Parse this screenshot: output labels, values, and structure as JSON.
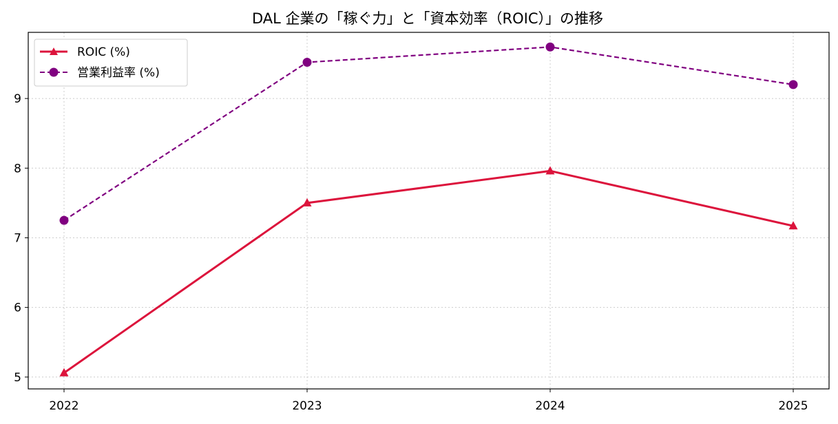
{
  "chart_data": {
    "type": "line",
    "title": "DAL 企業の「稼ぐ力」と「資本効率（ROIC）」の推移",
    "xlabel": "",
    "ylabel": "",
    "categories": [
      "2022",
      "2023",
      "2024",
      "2025"
    ],
    "y_ticks": [
      "5",
      "6",
      "7",
      "8",
      "9"
    ],
    "ylim": [
      4.83,
      9.95
    ],
    "grid": true,
    "legend_position": "upper-left",
    "series": [
      {
        "name": "ROIC (%)",
        "values": [
          5.06,
          7.5,
          7.96,
          7.17
        ],
        "color": "#dc143c",
        "marker": "triangle",
        "line_style": "solid"
      },
      {
        "name": "営業利益率 (%)",
        "values": [
          7.25,
          9.52,
          9.74,
          9.2
        ],
        "color": "#800080",
        "marker": "circle",
        "line_style": "dashed"
      }
    ]
  }
}
